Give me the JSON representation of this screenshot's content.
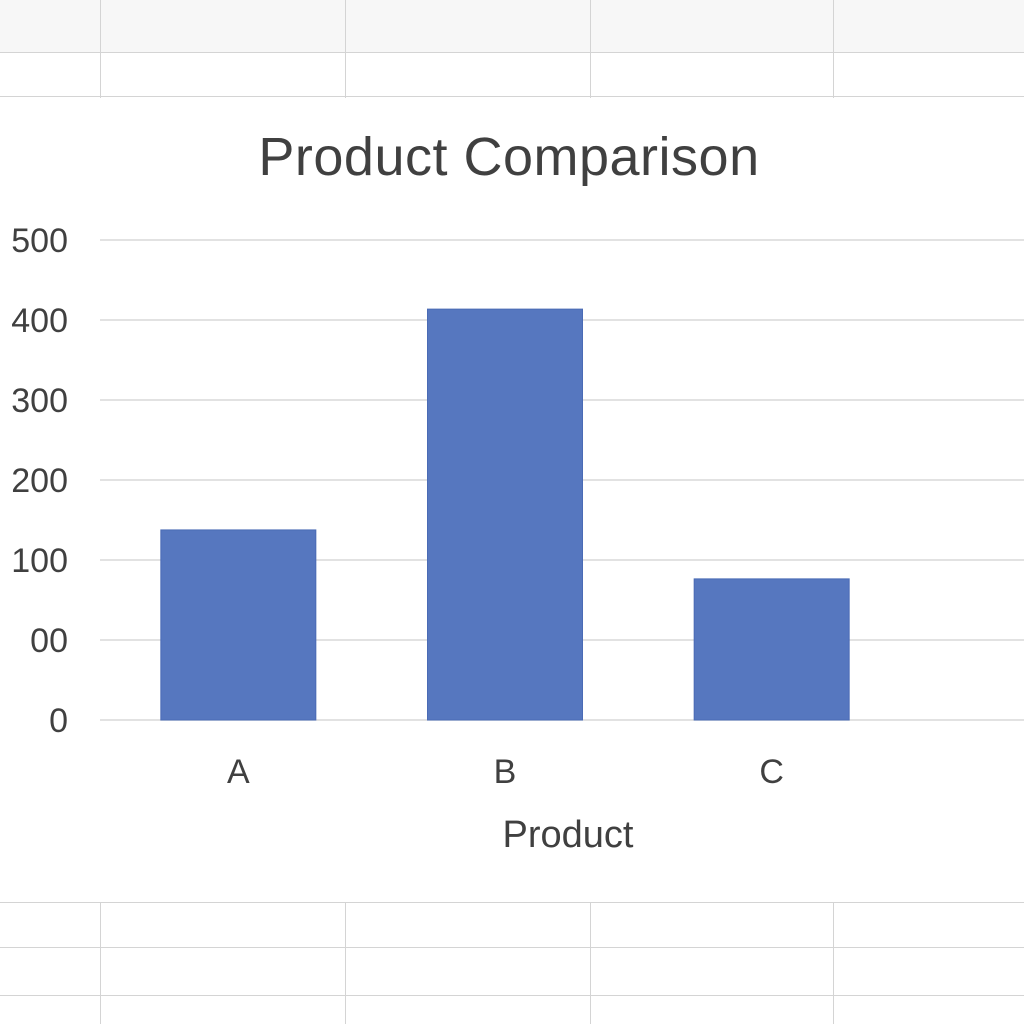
{
  "chart_data": {
    "type": "bar",
    "title": "Product Comparison",
    "xlabel": "Product",
    "ylabel": "",
    "categories": [
      "A",
      "B",
      "C"
    ],
    "values": [
      198,
      428,
      147
    ],
    "ylim": [
      0,
      500
    ],
    "y_tick_labels": [
      "0",
      "00",
      "100",
      "200",
      "300",
      "400",
      "500"
    ],
    "grid": true,
    "legend": "none",
    "bar_color": "#5677bf"
  }
}
